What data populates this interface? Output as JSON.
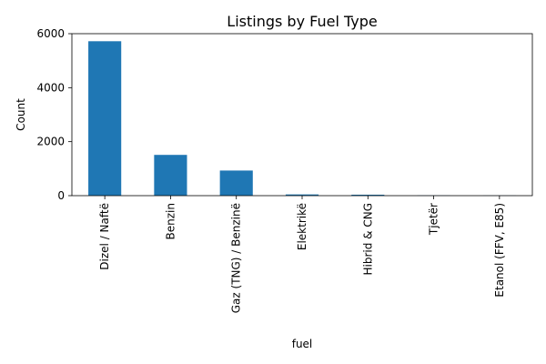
{
  "chart_data": {
    "type": "bar",
    "title": "Listings by Fuel Type",
    "xlabel": "fuel",
    "ylabel": "Count",
    "categories": [
      "Dizel / Naftë",
      "Benzin",
      "Gaz (TNG) / Benzinë",
      "Elektrikë",
      "Hibrid & CNG",
      "Tjetër",
      "Etanol (FFV, E85)"
    ],
    "values": [
      5720,
      1510,
      930,
      45,
      35,
      8,
      5
    ],
    "ylim": [
      0,
      6000
    ],
    "yticks": [
      0,
      2000,
      4000,
      6000
    ],
    "ytick_labels": [
      "0",
      "2000",
      "4000",
      "6000"
    ],
    "grid": false,
    "legend": "none",
    "bar_color": "#1f77b4"
  }
}
